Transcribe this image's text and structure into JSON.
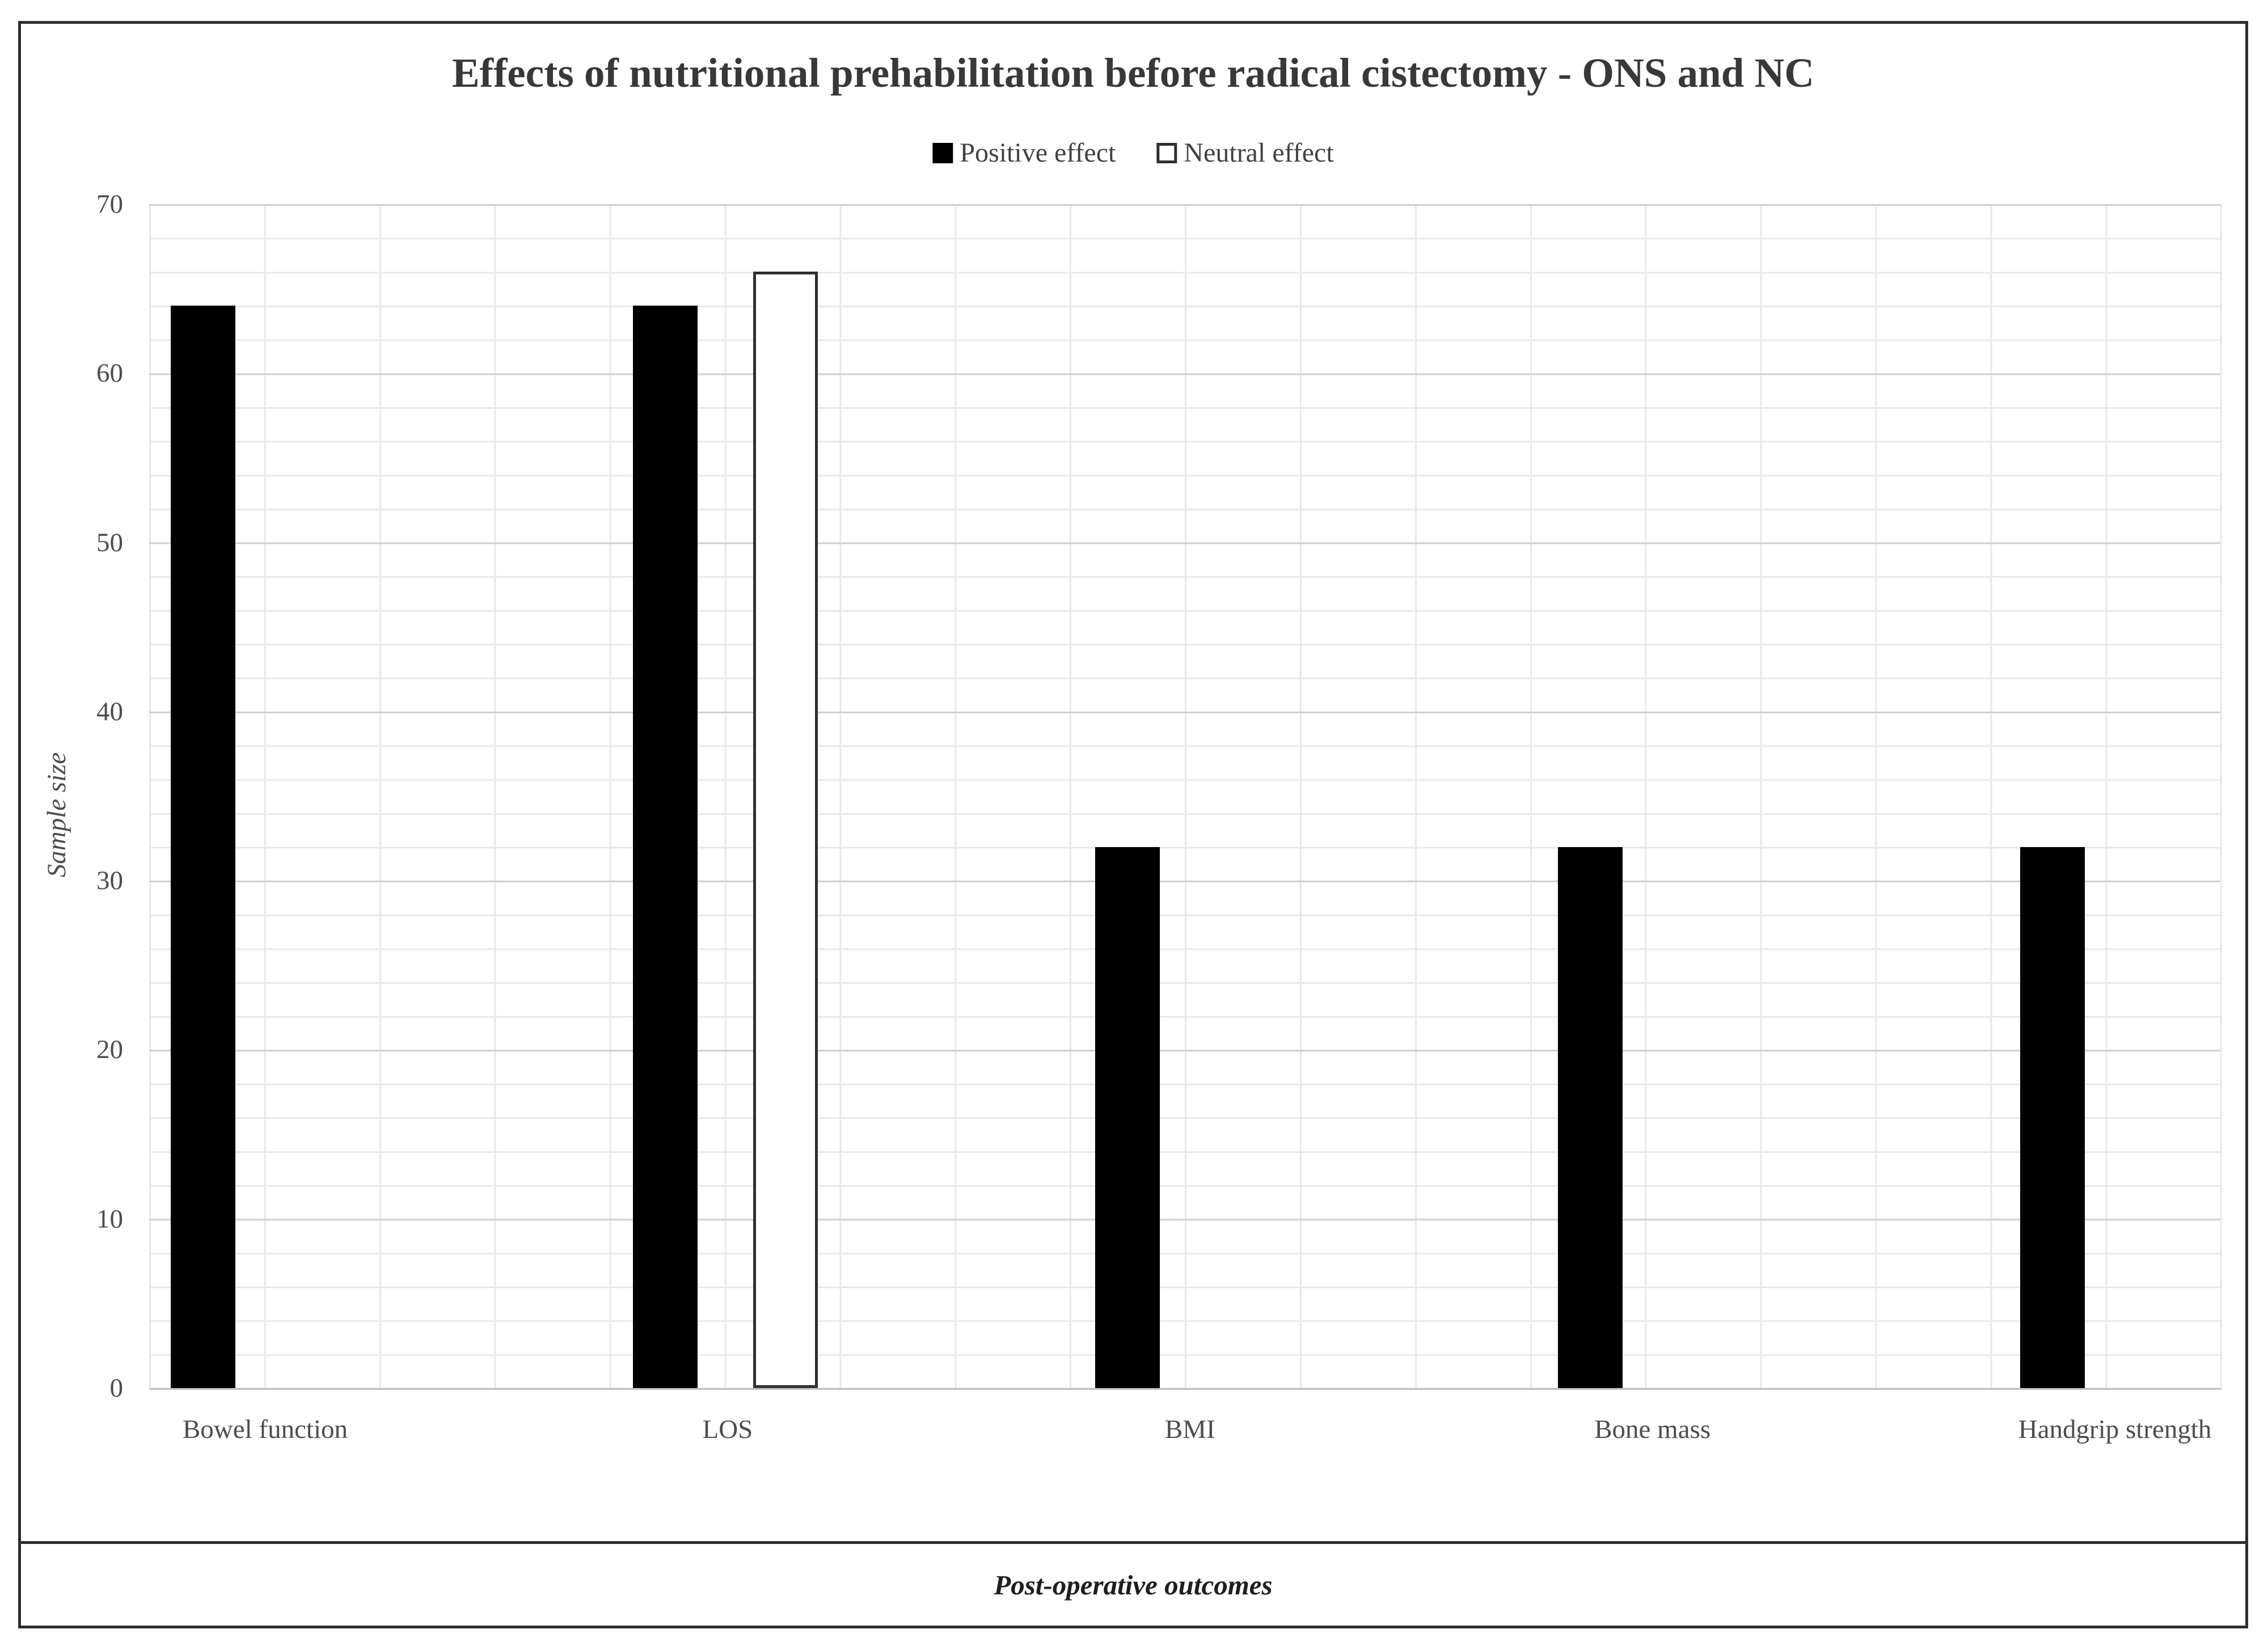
{
  "chart_data": {
    "type": "bar",
    "title": "Effects of nutritional prehabilitation before radical cistectomy - ONS and NC",
    "categories": [
      "Bowel function",
      "LOS",
      "BMI",
      "Bone mass",
      "Handgrip strength"
    ],
    "series": [
      {
        "name": "Positive effect",
        "fill": "#000000",
        "values": [
          64,
          64,
          32,
          32,
          32
        ]
      },
      {
        "name": "Neutral effect",
        "fill": "#ffffff",
        "border": "#2f2f2f",
        "values": [
          null,
          66,
          null,
          null,
          null
        ]
      }
    ],
    "xlabel": "Post-operative outcomes",
    "ylabel": "Sample size",
    "ylim": [
      0,
      70
    ],
    "y_ticks": [
      70,
      60,
      50,
      40,
      30,
      20,
      10,
      0
    ],
    "y_major_unit": 10,
    "y_minor_unit": 2,
    "grid": "horizontal major+minor and vertical minor, light gray",
    "legend_position": "top-center"
  },
  "colors": {
    "bar_positive": "#000000",
    "bar_neutral_fill": "#ffffff",
    "bar_neutral_border": "#2f2f2f",
    "gridline_minor": "#e8e8e8",
    "gridline_major": "#cfcfcf",
    "text": "#4d4d4d",
    "frame_border": "#2e2e2e"
  }
}
